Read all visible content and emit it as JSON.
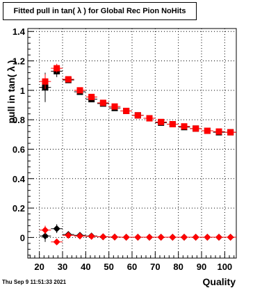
{
  "title": "Fitted pull in tan( λ ) for Global Rec Pion NoHits",
  "timestamp": "Thu Sep  9 11:51:33 2021",
  "colors": {
    "background": "#ffffff",
    "black_series": "#000000",
    "red_series": "#ff0000",
    "grid": "#000000"
  },
  "chart_data": {
    "type": "scatter",
    "title": "Fitted pull in tan( λ ) for Global Rec Pion NoHits",
    "xlabel": "Quality",
    "ylabel": "pull in tan( λ )",
    "xlim": [
      15,
      105
    ],
    "ylim": [
      -0.14,
      1.42
    ],
    "xticks": [
      20,
      30,
      40,
      50,
      60,
      70,
      80,
      90,
      100
    ],
    "yticks": [
      0,
      0.2,
      0.4,
      0.6,
      0.8,
      1,
      1.2,
      1.4
    ],
    "ytick_labels": [
      "0",
      "0.2",
      "0.4",
      "0.6",
      "0.8",
      "1",
      "1.2",
      "1.4"
    ],
    "grid": true,
    "x": [
      22.5,
      27.5,
      32.5,
      37.5,
      42.5,
      47.5,
      52.5,
      57.5,
      62.5,
      67.5,
      72.5,
      77.5,
      82.5,
      87.5,
      92.5,
      97.5,
      102.5
    ],
    "series": [
      {
        "marker": "square",
        "color": "#000000",
        "values": [
          1.02,
          1.13,
          1.07,
          0.99,
          0.94,
          0.91,
          0.88,
          0.86,
          0.83,
          0.81,
          0.78,
          0.77,
          0.75,
          0.74,
          0.725,
          0.715,
          0.715
        ],
        "errors": [
          0.1,
          0.04,
          0.01,
          0.01,
          0.01,
          0.005,
          0.005,
          0.005,
          0.005,
          0.005,
          0.005,
          0.005,
          0.005,
          0.005,
          0.005,
          0.005,
          0.005
        ]
      },
      {
        "marker": "square",
        "color": "#ff0000",
        "values": [
          1.06,
          1.15,
          1.075,
          1.0,
          0.955,
          0.915,
          0.89,
          0.86,
          0.83,
          0.81,
          0.785,
          0.77,
          0.755,
          0.74,
          0.725,
          0.72,
          0.715
        ],
        "errors": [
          0.05,
          0.03,
          0.01,
          0.01,
          0.01,
          0.005,
          0.005,
          0.005,
          0.005,
          0.005,
          0.005,
          0.005,
          0.005,
          0.005,
          0.005,
          0.005,
          0.005
        ]
      },
      {
        "marker": "diamond",
        "color": "#000000",
        "values": [
          0.01,
          0.06,
          0.02,
          0.015,
          0.01,
          0.005,
          0.003,
          0.002,
          0.002,
          0.002,
          0.002,
          0.002,
          0.002,
          0.002,
          0.002,
          0.002,
          0.002
        ],
        "errors": [
          0.04,
          0.03,
          0.01,
          0.01,
          0.005,
          0.005,
          0.005,
          0.005,
          0.005,
          0.005,
          0.005,
          0.005,
          0.005,
          0.005,
          0.005,
          0.005,
          0.005
        ]
      },
      {
        "marker": "diamond",
        "color": "#ff0000",
        "values": [
          0.05,
          -0.03,
          0.015,
          0.01,
          0.008,
          0.005,
          0.003,
          0.002,
          0.002,
          0.002,
          0.002,
          0.002,
          0.002,
          0.002,
          0.002,
          0.002,
          0.002
        ],
        "errors": [
          0.03,
          0.02,
          0.01,
          0.005,
          0.005,
          0.005,
          0.005,
          0.005,
          0.005,
          0.005,
          0.005,
          0.005,
          0.005,
          0.005,
          0.005,
          0.005,
          0.005
        ]
      }
    ]
  }
}
